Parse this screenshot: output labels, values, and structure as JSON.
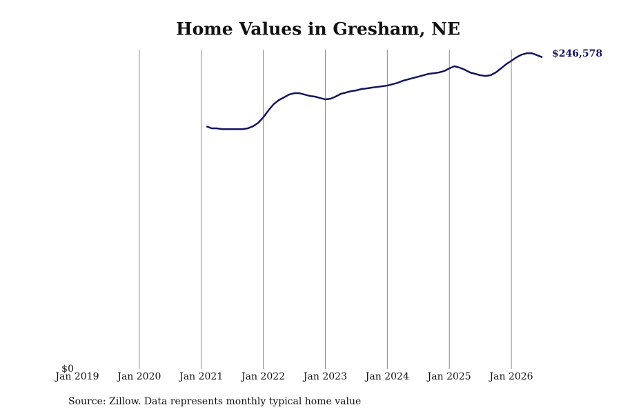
{
  "chart_data": {
    "type": "line",
    "title": "Home Values in Gresham, NE",
    "source": "Source: Zillow. Data represents monthly typical home value",
    "x": [
      "2021-02",
      "2021-03",
      "2021-04",
      "2021-05",
      "2021-06",
      "2021-07",
      "2021-08",
      "2021-09",
      "2021-10",
      "2021-11",
      "2021-12",
      "2022-01",
      "2022-02",
      "2022-03",
      "2022-04",
      "2022-05",
      "2022-06",
      "2022-07",
      "2022-08",
      "2022-09",
      "2022-10",
      "2022-11",
      "2022-12",
      "2023-01",
      "2023-02",
      "2023-03",
      "2023-04",
      "2023-05",
      "2023-06",
      "2023-07",
      "2023-08",
      "2023-09",
      "2023-10",
      "2023-11",
      "2023-12",
      "2024-01",
      "2024-02",
      "2024-03",
      "2024-04",
      "2024-05",
      "2024-06",
      "2024-07",
      "2024-08",
      "2024-09",
      "2024-10",
      "2024-11",
      "2024-12",
      "2025-01",
      "2025-02",
      "2025-03",
      "2025-04",
      "2025-05",
      "2025-06",
      "2025-07",
      "2025-08",
      "2025-09",
      "2025-10",
      "2025-11",
      "2025-12",
      "2026-01",
      "2026-02",
      "2026-03",
      "2026-04",
      "2026-05",
      "2026-06",
      "2026-07"
    ],
    "values": [
      192000,
      190400,
      190400,
      189800,
      189800,
      189800,
      189800,
      189800,
      190400,
      192000,
      194700,
      199100,
      204600,
      209500,
      212700,
      214900,
      217100,
      218200,
      218200,
      217100,
      216000,
      215500,
      214400,
      213300,
      213800,
      215500,
      217700,
      218700,
      219800,
      220400,
      221500,
      222000,
      222600,
      223100,
      223700,
      224200,
      225300,
      226400,
      228000,
      229100,
      230200,
      231300,
      232400,
      233500,
      234000,
      234600,
      235700,
      237800,
      239500,
      238400,
      236700,
      234600,
      233500,
      232400,
      231800,
      232400,
      234600,
      237800,
      241100,
      243800,
      246600,
      248700,
      249800,
      249800,
      248200,
      246578
    ],
    "value_labels": [
      null,
      null,
      null,
      null,
      null,
      null,
      null,
      null,
      null,
      null,
      null,
      null,
      null,
      null,
      null,
      null,
      null,
      null,
      null,
      null,
      null,
      null,
      null,
      null,
      null,
      null,
      null,
      null,
      null,
      null,
      null,
      null,
      null,
      null,
      null,
      null,
      null,
      null,
      null,
      null,
      null,
      null,
      null,
      null,
      null,
      null,
      null,
      null,
      null,
      null,
      null,
      null,
      null,
      null,
      null,
      null,
      null,
      null,
      null,
      null,
      null,
      null,
      null,
      null,
      null,
      "$246,578"
    ],
    "color": "#14145e",
    "xlim": [
      "2019-01",
      "2026-07"
    ],
    "xticks": [
      {
        "value": "2019-01",
        "label": "Jan 2019"
      },
      {
        "value": "2020-01",
        "label": "Jan 2020"
      },
      {
        "value": "2021-01",
        "label": "Jan 2021"
      },
      {
        "value": "2022-01",
        "label": "Jan 2022"
      },
      {
        "value": "2023-01",
        "label": "Jan 2023"
      },
      {
        "value": "2024-01",
        "label": "Jan 2024"
      },
      {
        "value": "2025-01",
        "label": "Jan 2025"
      },
      {
        "value": "2026-01",
        "label": "Jan 2026"
      }
    ],
    "ylim": [
      0,
      252600
    ],
    "yticks": [
      {
        "value": 0,
        "label": "$0"
      }
    ],
    "grid": true
  }
}
